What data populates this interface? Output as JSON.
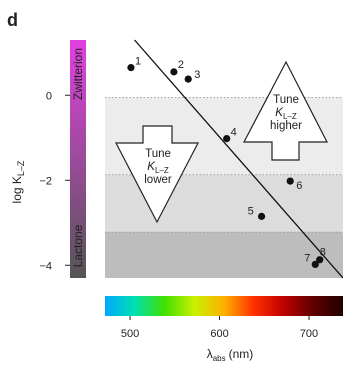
{
  "panel_letter": "d",
  "chart_data": {
    "type": "scatter",
    "ylabel": "log K",
    "ylabel_sub": "L–Z",
    "ylim": [
      -4.3,
      1.3
    ],
    "yticks": [
      0,
      -2,
      -4
    ],
    "ytick_labels": [
      "0",
      "−2",
      "−4"
    ],
    "xlabel": "λ",
    "xlabel_sub": "abs",
    "xlabel_unit": "(nm)",
    "xlim": [
      472,
      738
    ],
    "xticks": [
      500,
      600,
      700
    ],
    "xtick_labels": [
      "500",
      "600",
      "700"
    ],
    "state_bar": {
      "top_label": "Zwitterion",
      "bottom_label": "Lactone",
      "color_top": "#e040e0",
      "color_bottom": "#555555"
    },
    "bands": [
      {
        "from": -0.05,
        "to": -1.87,
        "color": "#ececec"
      },
      {
        "from": -1.87,
        "to": -3.22,
        "color": "#dcdcdc"
      },
      {
        "from": -3.22,
        "to": -4.3,
        "color": "#bdbdbd"
      }
    ],
    "points": [
      {
        "label": "1",
        "x": 501,
        "y": 0.65
      },
      {
        "label": "2",
        "x": 549,
        "y": 0.55
      },
      {
        "label": "3",
        "x": 565,
        "y": 0.38
      },
      {
        "label": "4",
        "x": 608,
        "y": -1.02
      },
      {
        "label": "5",
        "x": 647,
        "y": -2.85
      },
      {
        "label": "6",
        "x": 679,
        "y": -2.02
      },
      {
        "label": "7",
        "x": 707,
        "y": -3.98
      },
      {
        "label": "8",
        "x": 712,
        "y": -3.87
      }
    ],
    "trend_line": {
      "x1": 505,
      "y1": 1.3,
      "x2": 738,
      "y2": -4.3
    },
    "arrows": [
      {
        "direction": "down",
        "lines": [
          "Tune",
          "K",
          "lower"
        ],
        "sub": "L–Z"
      },
      {
        "direction": "up",
        "lines": [
          "Tune",
          "K",
          "higher"
        ],
        "sub": "L–Z"
      }
    ],
    "colorbar": {
      "stops": [
        "#00a8ff",
        "#00e0b0",
        "#40e000",
        "#c8f000",
        "#ffb000",
        "#ff3000",
        "#c00000",
        "#600000",
        "#200000"
      ]
    }
  }
}
